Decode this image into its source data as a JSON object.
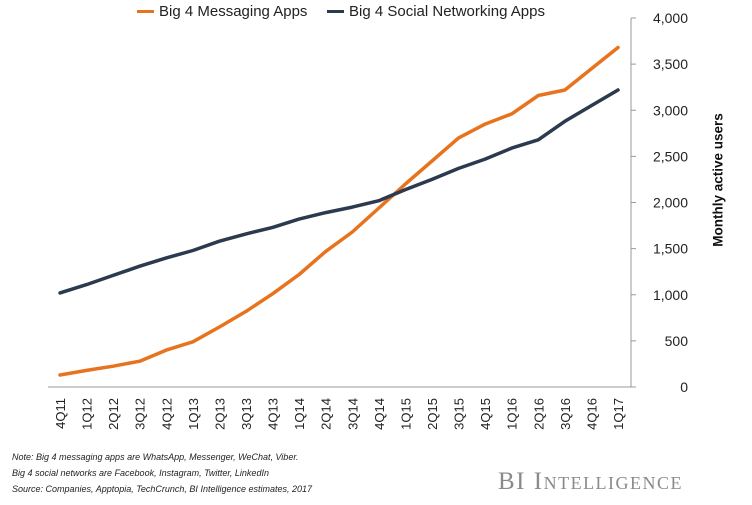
{
  "chart_data": {
    "type": "line",
    "ylabel": "Monthly active users",
    "ylim": [
      0,
      4000
    ],
    "yticks": [
      0,
      500,
      1000,
      1500,
      2000,
      2500,
      3000,
      3500,
      4000
    ],
    "ytick_labels": [
      "0",
      "500",
      "1,000",
      "1,500",
      "2,000",
      "2,500",
      "3,000",
      "3,500",
      "4,000"
    ],
    "y_axis_side": "right",
    "grid": false,
    "legend_position": "top",
    "categories": [
      "4Q11",
      "1Q12",
      "2Q12",
      "3Q12",
      "4Q12",
      "1Q13",
      "2Q13",
      "3Q13",
      "4Q13",
      "1Q14",
      "2Q14",
      "3Q14",
      "4Q14",
      "1Q15",
      "2Q15",
      "3Q15",
      "4Q15",
      "1Q16",
      "2Q16",
      "3Q16",
      "4Q16",
      "1Q17"
    ],
    "series": [
      {
        "name": "Big 4 Messaging Apps",
        "color": "#E8731E",
        "values": [
          130,
          180,
          225,
          280,
          400,
          490,
          650,
          820,
          1010,
          1220,
          1470,
          1680,
          1940,
          2200,
          2450,
          2700,
          2850,
          2960,
          3160,
          3220,
          3450,
          3680
        ]
      },
      {
        "name": "Big 4 Social Networking Apps",
        "color": "#2B3A4E",
        "values": [
          1020,
          1110,
          1210,
          1310,
          1400,
          1480,
          1580,
          1660,
          1730,
          1820,
          1890,
          1950,
          2020,
          2140,
          2250,
          2370,
          2470,
          2590,
          2680,
          2880,
          3050,
          3220
        ]
      }
    ]
  },
  "notes": [
    "Note: Big 4 messaging apps are WhatsApp, Messenger, WeChat, Viber.",
    "Big 4 social networks are Facebook, Instagram, Twitter, LinkedIn",
    "Source: Companies,  Apptopia, TechCrunch,  BI Intelligence estimates, 2017"
  ],
  "brand": "BI Intelligence"
}
